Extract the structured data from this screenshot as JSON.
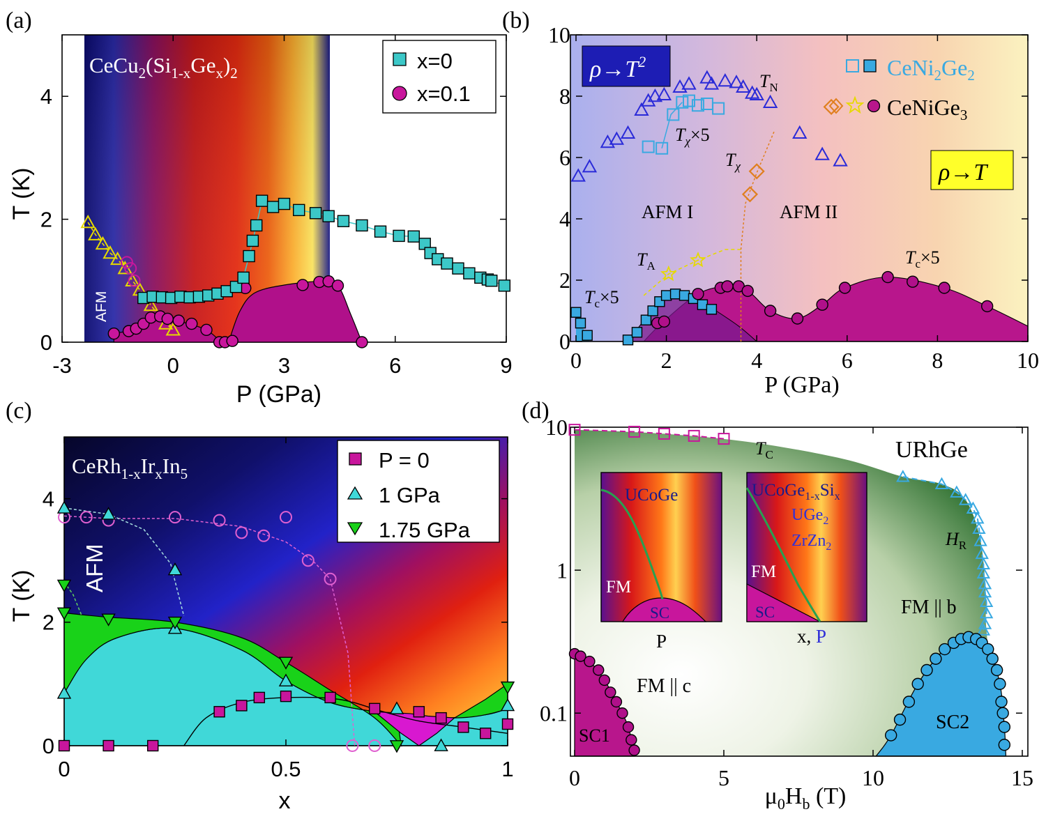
{
  "figure": {
    "panel_labels": [
      "(a)",
      "(b)",
      "(c)",
      "(d)"
    ]
  },
  "colors": {
    "teal_marker": "#3cc8c8",
    "magenta_marker": "#c8169c",
    "sc_magenta": "#b0108a",
    "cyan_fill": "#40d8d8",
    "green_fill": "#19d219",
    "light_blue": "#39a9e1",
    "orange": "#e07f1e",
    "yellow_marker": "#e6d900",
    "afm_blue": "#2a2ad8"
  },
  "chart_data": [
    {
      "panel": "(a)",
      "type": "scatter",
      "title": "CeCu2(Si1-xGex)2",
      "title_parts": {
        "base": "CeCu",
        "sub1": "2",
        "mid": "(Si",
        "sub2": "1-x",
        "mid2": "Ge",
        "sub3": "x",
        "end": ")",
        "sub4": "2"
      },
      "xlabel": "P (GPa)",
      "ylabel": "T (K)",
      "xlim": [
        -3,
        9
      ],
      "ylim": [
        0,
        5
      ],
      "xticks": [
        "-3",
        "0",
        "3",
        "6",
        "9"
      ],
      "yticks": [
        "0",
        "2",
        "4"
      ],
      "region_label": "AFM",
      "legend": [
        {
          "label": "x=0",
          "marker": "square"
        },
        {
          "label": "x=0.1",
          "marker": "circle"
        }
      ],
      "series": [
        {
          "name": "x=0",
          "marker": "square",
          "x": [
            -0.8,
            -0.55,
            -0.3,
            -0.05,
            0.2,
            0.45,
            0.7,
            0.95,
            1.2,
            1.45,
            1.7,
            1.9,
            2.05,
            2.15,
            2.25,
            2.4,
            2.7,
            3.0,
            3.4,
            3.85,
            4.2,
            4.6,
            5.1,
            5.6,
            6.1,
            6.5,
            6.8,
            6.95,
            7.15,
            7.4,
            7.7,
            8.0,
            8.3,
            8.5,
            8.6,
            8.95
          ],
          "y": [
            0.72,
            0.74,
            0.73,
            0.72,
            0.74,
            0.73,
            0.74,
            0.76,
            0.79,
            0.83,
            0.9,
            1.05,
            1.4,
            1.65,
            1.9,
            2.3,
            2.2,
            2.25,
            2.15,
            2.1,
            2.05,
            1.97,
            1.9,
            1.8,
            1.73,
            1.72,
            1.6,
            1.45,
            1.35,
            1.28,
            1.2,
            1.12,
            1.05,
            1.02,
            1.0,
            0.92
          ]
        },
        {
          "name": "x=0.1",
          "marker": "circle",
          "x": [
            -1.6,
            -1.2,
            -1.0,
            -0.8,
            -0.6,
            -0.35,
            -0.15,
            0.15,
            0.5,
            0.9,
            1.25,
            1.4,
            1.6,
            1.95,
            3.5,
            3.95,
            4.2,
            4.45,
            5.1
          ],
          "y": [
            0.14,
            0.18,
            0.22,
            0.3,
            0.4,
            0.42,
            0.38,
            0.35,
            0.3,
            0.2,
            0.0,
            0.0,
            0.02,
            0.88,
            0.93,
            0.98,
            0.99,
            0.92,
            0.0
          ]
        },
        {
          "name": "x=0.1 open",
          "marker": "open-circle",
          "x": [
            -1.25,
            -1.15,
            -1.05
          ],
          "y": [
            1.3,
            1.2,
            1.0
          ]
        },
        {
          "name": "AFM boundary",
          "marker": "open-triangle",
          "x": [
            -2.3,
            -2.1,
            -1.9,
            -1.7,
            -1.5,
            -1.3,
            -1.1,
            -0.9,
            -0.6,
            -0.2,
            0.0
          ],
          "y": [
            1.95,
            1.75,
            1.6,
            1.45,
            1.35,
            1.2,
            1.0,
            0.85,
            0.6,
            0.3,
            0.2
          ]
        }
      ]
    },
    {
      "panel": "(b)",
      "type": "scatter",
      "xlabel": "P (GPa)",
      "ylabel": "",
      "xlim": [
        0,
        10
      ],
      "ylim": [
        0,
        10
      ],
      "xticks": [
        "0",
        "2",
        "4",
        "6",
        "8",
        "10"
      ],
      "yticks": [
        "0",
        "2",
        "4",
        "6",
        "8",
        "10"
      ],
      "boxes": [
        {
          "base": "ρ→T",
          "sup": "2"
        },
        {
          "base": "ρ→T",
          "sup": ""
        }
      ],
      "legend": [
        {
          "base": "CeNi",
          "sub": "2",
          "mid": "Ge",
          "sub2": "2",
          "end": ""
        },
        {
          "base": "CeNiGe",
          "sub": "3",
          "mid": "",
          "sub2": "",
          "end": ""
        }
      ],
      "annotations": {
        "TN": {
          "base": "T",
          "sub": "N"
        },
        "Tchi5": {
          "base": "T",
          "sub": "χ",
          "tail": "×5"
        },
        "Tchi": {
          "base": "T",
          "sub": "χ"
        },
        "TA": {
          "base": "T",
          "sub": "A"
        },
        "Tc5_left": {
          "base": "T",
          "sub": "c",
          "tail": "×5"
        },
        "Tc5_right": {
          "base": "T",
          "sub": "c",
          "tail": "×5"
        },
        "AFM1": "AFM I",
        "AFM2": "AFM II"
      },
      "series": [
        {
          "name": "TN",
          "marker": "open-triangle",
          "x": [
            0.05,
            0.3,
            0.7,
            0.9,
            1.15,
            1.45,
            1.6,
            1.75,
            1.95,
            2.3,
            2.5,
            2.9,
            3.0,
            3.3,
            3.55,
            3.7,
            3.9,
            4.0,
            4.3,
            4.95,
            5.45,
            5.85
          ],
          "y": [
            5.4,
            5.7,
            6.5,
            6.6,
            6.8,
            7.55,
            7.85,
            8.0,
            8.05,
            8.3,
            8.4,
            8.6,
            8.4,
            8.5,
            8.45,
            8.3,
            8.1,
            8.05,
            7.8,
            6.8,
            6.1,
            5.9
          ]
        },
        {
          "name": "Tchi x5",
          "marker": "open-square",
          "x": [
            1.6,
            1.9,
            2.15,
            2.35,
            2.5,
            2.7,
            2.9,
            3.15
          ],
          "y": [
            6.35,
            6.3,
            7.4,
            7.8,
            7.85,
            7.7,
            7.75,
            7.6
          ]
        },
        {
          "name": "Tchi CeNiGe3",
          "marker": "open-diamond",
          "x": [
            3.85,
            4.0,
            5.65
          ],
          "y": [
            4.8,
            5.55,
            7.65
          ]
        },
        {
          "name": "TA",
          "marker": "open-star",
          "x": [
            2.05,
            2.7
          ],
          "y": [
            2.2,
            2.65
          ]
        },
        {
          "name": "CeNi2Ge2 Tc x5",
          "marker": "square",
          "x": [
            0.0,
            0.1,
            0.25,
            1.15,
            1.35,
            1.55,
            1.7,
            1.85,
            2.0,
            2.2,
            2.4,
            2.6,
            2.8,
            3.0
          ],
          "y": [
            0.95,
            0.6,
            0.2,
            0.05,
            0.3,
            0.7,
            1.0,
            1.3,
            1.5,
            1.55,
            1.5,
            1.4,
            1.2,
            1.05
          ]
        },
        {
          "name": "CeNiGe3 Tc x5",
          "marker": "circle",
          "x": [
            1.8,
            1.95,
            2.7,
            3.2,
            3.35,
            3.6,
            3.8,
            4.3,
            4.9,
            5.45,
            5.95,
            6.9,
            7.45,
            8.15,
            9.1
          ],
          "y": [
            0.6,
            0.65,
            1.55,
            1.75,
            1.8,
            1.8,
            1.65,
            1.0,
            0.75,
            1.2,
            1.75,
            2.1,
            1.95,
            1.75,
            1.15
          ]
        }
      ]
    },
    {
      "panel": "(c)",
      "type": "scatter",
      "title": "CeRh1-xIrxIn5",
      "title_parts": {
        "base": "CeRh",
        "sub1": "1-x",
        "mid": "Ir",
        "sub2": "x",
        "mid2": "In",
        "sub3": "5"
      },
      "xlabel": "x",
      "ylabel": "T (K)",
      "xlim": [
        0,
        1
      ],
      "ylim": [
        0,
        5
      ],
      "xticks": [
        "0",
        "0.5",
        "1"
      ],
      "yticks": [
        "0",
        "2",
        "4"
      ],
      "region_label": "AFM",
      "legend": [
        {
          "label": "P = 0",
          "marker": "square"
        },
        {
          "label": "1 GPa",
          "marker": "triangle-up"
        },
        {
          "label": "1.75 GPa",
          "marker": "triangle-down"
        }
      ],
      "series": [
        {
          "name": "P = 0 Tc",
          "marker": "square",
          "x": [
            0.0,
            0.1,
            0.2,
            0.35,
            0.4,
            0.44,
            0.5,
            0.6,
            0.7,
            0.8,
            0.85,
            0.9,
            0.95,
            1.0
          ],
          "y": [
            0.0,
            0.0,
            0.0,
            0.55,
            0.65,
            0.78,
            0.8,
            0.78,
            0.6,
            0.55,
            0.45,
            0.3,
            0.2,
            0.35
          ]
        },
        {
          "name": "P = 0 TN",
          "marker": "open-circle",
          "x": [
            0.0,
            0.05,
            0.1,
            0.25,
            0.35,
            0.4,
            0.45,
            0.5,
            0.55,
            0.6,
            0.65,
            0.7
          ],
          "y": [
            3.7,
            3.7,
            3.65,
            3.7,
            3.65,
            3.45,
            3.4,
            3.7,
            3.0,
            2.7,
            0.0,
            0.0
          ]
        },
        {
          "name": "1 GPa",
          "marker": "triangle-up",
          "x": [
            0.0,
            0.0,
            0.1,
            0.25,
            0.25,
            0.5,
            0.75,
            0.85,
            1.0
          ],
          "y": [
            3.85,
            0.85,
            3.75,
            2.85,
            1.9,
            1.05,
            0.6,
            0.0,
            0.65
          ]
        },
        {
          "name": "1.75 GPa",
          "marker": "triangle-down",
          "x": [
            0.0,
            0.0,
            0.1,
            0.25,
            0.5,
            0.75,
            1.0
          ],
          "y": [
            2.6,
            2.15,
            2.05,
            2.0,
            1.35,
            0.0,
            0.95
          ]
        }
      ]
    },
    {
      "panel": "(d)",
      "type": "scatter",
      "title": "URhGe",
      "xlabel": {
        "base": "μ",
        "sub": "0",
        "mid": "H",
        "sub2": "b",
        "end": " (T)"
      },
      "ylabel": "",
      "xlim": [
        0,
        15
      ],
      "ylim": [
        0.05,
        10
      ],
      "yscale": "log",
      "xticks": [
        "0",
        "5",
        "10",
        "15"
      ],
      "yticks": [
        "0.1",
        "1",
        "10"
      ],
      "annotations": {
        "TC": {
          "base": "T",
          "sub": "C"
        },
        "HR": {
          "base": "H",
          "sub": "R"
        },
        "FMb": "FM || b",
        "FMc": "FM || c",
        "SC1": "SC1",
        "SC2": "SC2"
      },
      "insets": [
        {
          "title": "UCoGe",
          "fm": "FM",
          "sc": "SC",
          "axis": "P"
        },
        {
          "title": "UCoGe1-xSix",
          "title_parts": {
            "base": "UCoGe",
            "sub": "1-x",
            "mid": "Si",
            "sub2": "x"
          },
          "line2": {
            "base": "UGe",
            "sub": "2"
          },
          "line3": {
            "base": "ZrZn",
            "sub": "2"
          },
          "fm": "FM",
          "sc": "SC",
          "axis_a": "x, ",
          "axis_b": "P"
        }
      ],
      "series": [
        {
          "name": "TC",
          "marker": "open-square",
          "x": [
            0.0,
            2.0,
            3.0,
            4.0,
            5.0
          ],
          "y": [
            9.6,
            9.3,
            9.0,
            8.7,
            8.3
          ]
        },
        {
          "name": "HR",
          "marker": "open-triangle",
          "x": [
            11.0,
            12.3,
            12.8,
            13.1,
            13.35,
            13.5,
            13.55,
            13.6,
            13.65,
            13.7,
            13.7,
            13.75,
            13.75,
            13.8,
            13.8,
            13.75,
            13.7
          ],
          "y": [
            4.5,
            4.0,
            3.5,
            3.1,
            2.7,
            2.3,
            1.95,
            1.6,
            1.3,
            1.1,
            0.95,
            0.8,
            0.7,
            0.6,
            0.5,
            0.42,
            0.38
          ]
        },
        {
          "name": "SC1",
          "marker": "circle",
          "x": [
            0.0,
            0.2,
            0.5,
            0.8,
            1.0,
            1.2,
            1.4,
            1.6,
            1.8,
            1.9,
            2.0
          ],
          "y": [
            0.26,
            0.25,
            0.23,
            0.2,
            0.17,
            0.14,
            0.12,
            0.1,
            0.08,
            0.065,
            0.055
          ]
        },
        {
          "name": "SC2",
          "marker": "circle",
          "x": [
            10.6,
            10.9,
            11.2,
            11.5,
            11.8,
            12.1,
            12.4,
            12.7,
            12.95,
            13.2,
            13.45,
            13.65,
            13.85,
            14.0,
            14.15,
            14.25,
            14.3,
            14.35,
            14.4,
            14.4
          ],
          "y": [
            0.07,
            0.09,
            0.12,
            0.16,
            0.2,
            0.24,
            0.28,
            0.31,
            0.33,
            0.34,
            0.33,
            0.31,
            0.28,
            0.24,
            0.2,
            0.16,
            0.12,
            0.1,
            0.08,
            0.06
          ]
        }
      ]
    }
  ]
}
